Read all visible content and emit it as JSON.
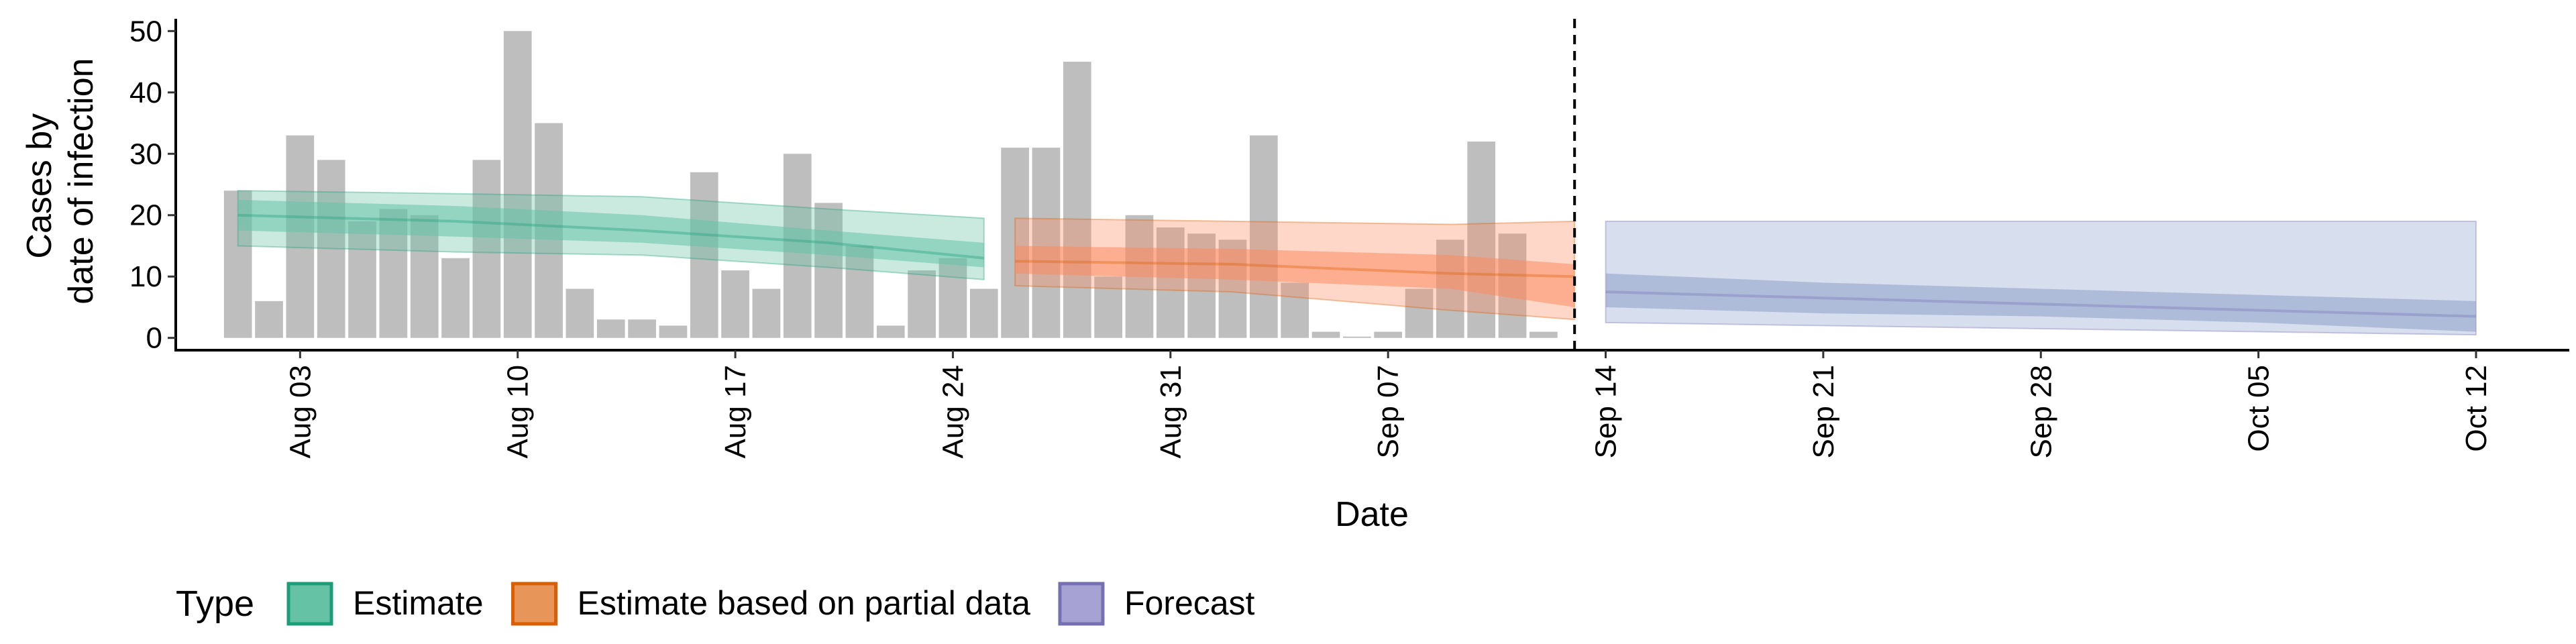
{
  "chart_data": {
    "type": "bar",
    "xlabel": "Date",
    "ylabel_lines": [
      "Cases by",
      "date of infection"
    ],
    "ylim": [
      -2,
      52
    ],
    "y_ticks": [
      0,
      10,
      20,
      30,
      40,
      50
    ],
    "x_start_date": "2020-07-30",
    "x_end_date": "2020-10-15",
    "x_tick_labels": [
      "Aug 03",
      "Aug 10",
      "Aug 17",
      "Aug 24",
      "Aug 31",
      "Sep 07",
      "Sep 14",
      "Sep 21",
      "Sep 28",
      "Oct 05",
      "Oct 12"
    ],
    "x_tick_dates": [
      "2020-08-03",
      "2020-08-10",
      "2020-08-17",
      "2020-08-24",
      "2020-08-31",
      "2020-09-07",
      "2020-09-14",
      "2020-09-21",
      "2020-09-28",
      "2020-10-05",
      "2020-10-12"
    ],
    "bars": {
      "start_date": "2020-08-01",
      "values": [
        24,
        6,
        33,
        29,
        19,
        21,
        20,
        13,
        29,
        50,
        35,
        8,
        3,
        3,
        2,
        27,
        11,
        8,
        30,
        22,
        15,
        2,
        11,
        13,
        8,
        31,
        31,
        45,
        10,
        20,
        18,
        17,
        16,
        33,
        9,
        1,
        0,
        1,
        8,
        16,
        32,
        17,
        1
      ],
      "color": "#bebebe"
    },
    "forecast_line_date": "2020-09-13",
    "series": [
      {
        "name": "Estimate",
        "color": "#1b9e77",
        "fill": "#66c2a5",
        "points": [
          {
            "date": "2020-08-01",
            "mid": 20,
            "inner": [
              17.5,
              22.5
            ],
            "outer": [
              15,
              24
            ]
          },
          {
            "date": "2020-08-08",
            "mid": 19,
            "inner": [
              16.5,
              21.5
            ],
            "outer": [
              14,
              23.5
            ]
          },
          {
            "date": "2020-08-14",
            "mid": 17.5,
            "inner": [
              15.5,
              20
            ],
            "outer": [
              13.5,
              23
            ]
          },
          {
            "date": "2020-08-20",
            "mid": 15.5,
            "inner": [
              13.5,
              17.5
            ],
            "outer": [
              11.5,
              21
            ]
          },
          {
            "date": "2020-08-25",
            "mid": 13,
            "inner": [
              11.5,
              15.5
            ],
            "outer": [
              9.5,
              19.5
            ]
          }
        ]
      },
      {
        "name": "Estimate based on partial data",
        "color": "#d95f02",
        "fill": "#fc8d62",
        "points": [
          {
            "date": "2020-08-26",
            "mid": 12.5,
            "inner": [
              10.5,
              15
            ],
            "outer": [
              8.5,
              19.5
            ]
          },
          {
            "date": "2020-09-02",
            "mid": 12,
            "inner": [
              9.5,
              14.5
            ],
            "outer": [
              7.5,
              19
            ]
          },
          {
            "date": "2020-09-09",
            "mid": 10.5,
            "inner": [
              8,
              13.5
            ],
            "outer": [
              4.5,
              18.5
            ]
          },
          {
            "date": "2020-09-13",
            "mid": 10,
            "inner": [
              5,
              12
            ],
            "outer": [
              3,
              19
            ]
          }
        ]
      },
      {
        "name": "Forecast",
        "color": "#7570b3",
        "fill": "#8da0cb",
        "points": [
          {
            "date": "2020-09-14",
            "mid": 7.5,
            "inner": [
              5,
              10.5
            ],
            "outer": [
              2.5,
              19
            ]
          },
          {
            "date": "2020-09-21",
            "mid": 6.5,
            "inner": [
              4,
              9
            ],
            "outer": [
              2,
              19
            ]
          },
          {
            "date": "2020-09-28",
            "mid": 5.5,
            "inner": [
              3.5,
              8
            ],
            "outer": [
              1.5,
              19
            ]
          },
          {
            "date": "2020-10-05",
            "mid": 4.5,
            "inner": [
              2.5,
              7
            ],
            "outer": [
              1,
              19
            ]
          },
          {
            "date": "2020-10-12",
            "mid": 3.5,
            "inner": [
              1,
              6
            ],
            "outer": [
              0.5,
              19
            ]
          }
        ]
      }
    ],
    "legend": {
      "title": "Type",
      "position": "bottom",
      "items": [
        {
          "label": "Estimate",
          "fill": "#66c2a5",
          "border": "#1b9e77"
        },
        {
          "label": "Estimate based on partial data",
          "fill": "#e8955a",
          "border": "#d95f02"
        },
        {
          "label": "Forecast",
          "fill": "#a6a2d3",
          "border": "#7570b3"
        }
      ]
    }
  }
}
